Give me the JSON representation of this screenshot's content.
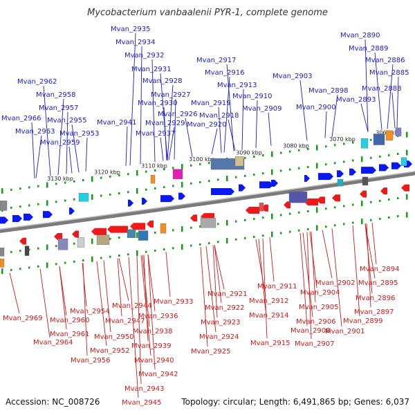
{
  "title": "Mycobacterium vanbaalenii PYR-1, complete genome",
  "footer": {
    "accession": "Accession: NC_008726",
    "summary": "Topology: circular; Length: 6,491,865 bp; Genes: 6,037"
  },
  "colors": {
    "top_strand": "#0000ee",
    "bottom_strand": "#ee0000",
    "backbone": "#777777",
    "tick": "#1a9a1a"
  },
  "kbp_labels": [
    "3060 kbp",
    "3070 kbp",
    "3080 kbp",
    "3090 kbp",
    "3100 kbp",
    "3110 kbp",
    "3120 kbp",
    "3130 kbp"
  ],
  "top_genes": [
    "Mvan_2935",
    "Mvan_2934",
    "Mvan_2932",
    "Mvan_2931",
    "Mvan_2928",
    "Mvan_2927",
    "Mvan_2930",
    "Mvan_2926",
    "Mvan_2929",
    "Mvan_2941",
    "Mvan_2937",
    "Mvan_2962",
    "Mvan_2958",
    "Mvan_2957",
    "Mvan_2966",
    "Mvan_2955",
    "Mvan_2963",
    "Mvan_2953",
    "Mvan_2959",
    "Mvan_2917",
    "Mvan_2916",
    "Mvan_2913",
    "Mvan_2919",
    "Mvan_2918",
    "Mvan_2920",
    "Mvan_2910",
    "Mvan_2909",
    "Mvan_2903",
    "Mvan_2898",
    "Mvan_2900",
    "Mvan_2890",
    "Mvan_2889",
    "Mvan_2886",
    "Mvan_2885",
    "Mvan_2888",
    "Mvan_2893"
  ],
  "bottom_genes": [
    "Mvan_2969",
    "Mvan_2960",
    "Mvan_2954",
    "Mvan_2964",
    "Mvan_2961",
    "Mvan_2956",
    "Mvan_2952",
    "Mvan_2950",
    "Mvan_2947",
    "Mvan_2944",
    "Mvan_2938",
    "Mvan_2939",
    "Mvan_2940",
    "Mvan_2942",
    "Mvan_2943",
    "Mvan_2945",
    "Mvan_2936",
    "Mvan_2933",
    "Mvan_2921",
    "Mvan_2922",
    "Mvan_2923",
    "Mvan_2924",
    "Mvan_2925",
    "Mvan_2911",
    "Mvan_2912",
    "Mvan_2914",
    "Mvan_2915",
    "Mvan_2902",
    "Mvan_2904",
    "Mvan_2905",
    "Mvan_2906",
    "Mvan_2908",
    "Mvan_2907",
    "Mvan_2901",
    "Mvan_2899",
    "Mvan_2894",
    "Mvan_2895",
    "Mvan_2896",
    "Mvan_2897"
  ]
}
